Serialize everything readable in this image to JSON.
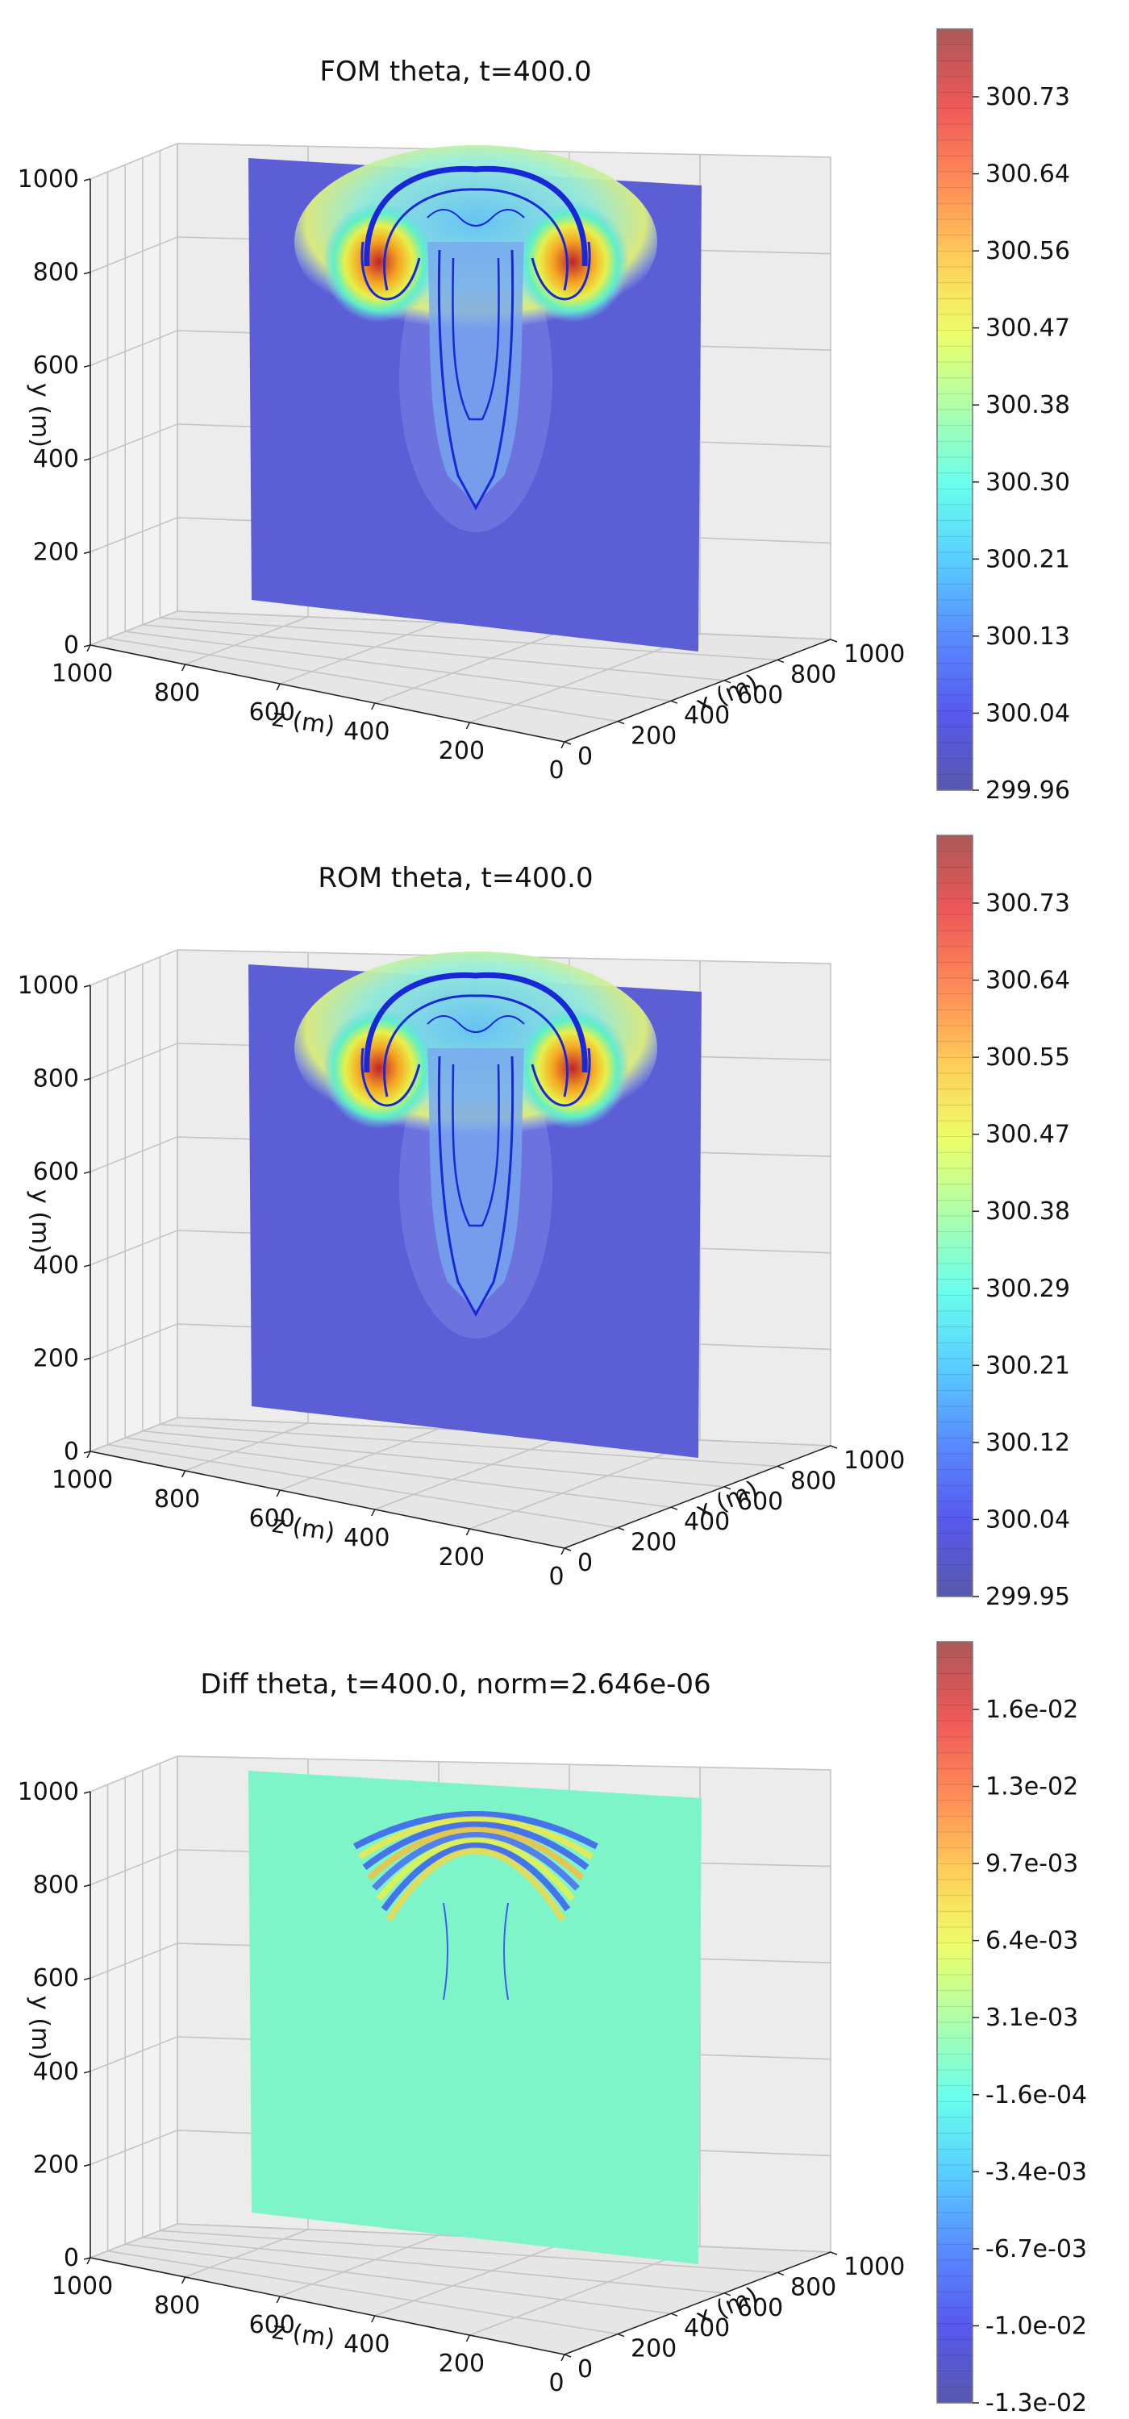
{
  "chart_data": [
    {
      "type": "heatmap",
      "title": "FOM theta, t=400.0",
      "xlabel": "x (m)",
      "ylabel": "y (m)",
      "zlabel": "z (m)",
      "y_ticks": [
        "0",
        "200",
        "400",
        "600",
        "800",
        "1000"
      ],
      "z_ticks": [
        "1000",
        "800",
        "600",
        "400",
        "200",
        "0"
      ],
      "x_ticks": [
        "0",
        "200",
        "400",
        "600",
        "800",
        "1000"
      ],
      "x_range": [
        0,
        1000
      ],
      "y_range": [
        0,
        1000
      ],
      "z_range": [
        0,
        1000
      ],
      "field": "plume",
      "colorbar": {
        "colormap": "jet",
        "ticks": [
          "300.73",
          "300.64",
          "300.56",
          "300.47",
          "300.38",
          "300.30",
          "300.21",
          "300.13",
          "300.04",
          "299.96"
        ]
      },
      "grid": true
    },
    {
      "type": "heatmap",
      "title": "ROM theta, t=400.0",
      "xlabel": "x (m)",
      "ylabel": "y (m)",
      "zlabel": "z (m)",
      "y_ticks": [
        "0",
        "200",
        "400",
        "600",
        "800",
        "1000"
      ],
      "z_ticks": [
        "1000",
        "800",
        "600",
        "400",
        "200",
        "0"
      ],
      "x_ticks": [
        "0",
        "200",
        "400",
        "600",
        "800",
        "1000"
      ],
      "x_range": [
        0,
        1000
      ],
      "y_range": [
        0,
        1000
      ],
      "z_range": [
        0,
        1000
      ],
      "field": "plume",
      "colorbar": {
        "colormap": "jet",
        "ticks": [
          "300.73",
          "300.64",
          "300.55",
          "300.47",
          "300.38",
          "300.29",
          "300.21",
          "300.12",
          "300.04",
          "299.95"
        ]
      },
      "grid": true
    },
    {
      "type": "heatmap",
      "title": "Diff theta, t=400.0, norm=2.646e-06",
      "xlabel": "x (m)",
      "ylabel": "y (m)",
      "zlabel": "z (m)",
      "y_ticks": [
        "0",
        "200",
        "400",
        "600",
        "800",
        "1000"
      ],
      "z_ticks": [
        "1000",
        "800",
        "600",
        "400",
        "200",
        "0"
      ],
      "x_ticks": [
        "0",
        "200",
        "400",
        "600",
        "800",
        "1000"
      ],
      "x_range": [
        0,
        1000
      ],
      "y_range": [
        0,
        1000
      ],
      "z_range": [
        0,
        1000
      ],
      "field": "difference",
      "colorbar": {
        "colormap": "jet",
        "ticks": [
          "1.6e-02",
          "1.3e-02",
          "9.7e-03",
          "6.4e-03",
          "3.1e-03",
          "-1.6e-04",
          "-3.4e-03",
          "-6.7e-03",
          "-1.0e-02",
          "-1.3e-02"
        ]
      },
      "grid": true
    }
  ]
}
